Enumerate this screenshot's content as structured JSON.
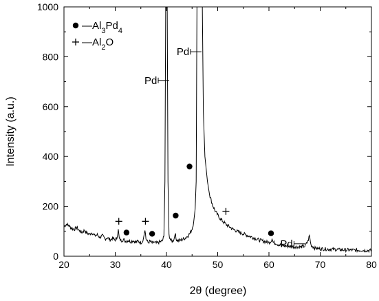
{
  "chart_data": {
    "type": "line",
    "xlabel": "2θ  (degree)",
    "ylabel": "Intensity (a.u.)",
    "xlim": [
      20,
      80
    ],
    "ylim": [
      0,
      1000
    ],
    "x_ticks": [
      20,
      30,
      40,
      50,
      60,
      70,
      80
    ],
    "y_ticks": [
      0,
      200,
      400,
      600,
      800,
      1000
    ],
    "x_tick_labels": [
      "20",
      "30",
      "40",
      "50",
      "60",
      "70",
      "80"
    ],
    "y_tick_labels": [
      "0",
      "200",
      "400",
      "600",
      "800",
      "1000"
    ],
    "grid": false,
    "legend_position": "top-left",
    "legend": [
      {
        "marker": "circle",
        "dash": "—",
        "base": "Al",
        "sub1": "3",
        "mid": "Pd",
        "sub2": "4"
      },
      {
        "marker": "plus",
        "dash": "—",
        "base": "Al",
        "sub1": "2",
        "mid": "O",
        "sub2": ""
      }
    ],
    "series": [
      {
        "points": [
          [
            20.0,
            120
          ],
          [
            20.5,
            128
          ],
          [
            21.0,
            122
          ],
          [
            21.5,
            112
          ],
          [
            22.0,
            108
          ],
          [
            22.5,
            115
          ],
          [
            23.0,
            102
          ],
          [
            23.5,
            96
          ],
          [
            24.0,
            104
          ],
          [
            24.5,
            92
          ],
          [
            25.0,
            88
          ],
          [
            25.5,
            95
          ],
          [
            26.0,
            82
          ],
          [
            26.5,
            86
          ],
          [
            27.0,
            76
          ],
          [
            27.5,
            82
          ],
          [
            28.0,
            70
          ],
          [
            28.5,
            74
          ],
          [
            29.0,
            66
          ],
          [
            29.5,
            72
          ],
          [
            30.0,
            65
          ],
          [
            30.3,
            72
          ],
          [
            30.6,
            105
          ],
          [
            30.8,
            70
          ],
          [
            31.2,
            62
          ],
          [
            31.6,
            68
          ],
          [
            32.0,
            60
          ],
          [
            32.5,
            64
          ],
          [
            33.0,
            58
          ],
          [
            33.5,
            63
          ],
          [
            34.0,
            56
          ],
          [
            34.5,
            60
          ],
          [
            35.0,
            55
          ],
          [
            35.4,
            60
          ],
          [
            35.8,
            110
          ],
          [
            36.0,
            70
          ],
          [
            36.4,
            55
          ],
          [
            36.8,
            60
          ],
          [
            37.2,
            53
          ],
          [
            37.6,
            56
          ],
          [
            38.0,
            52
          ],
          [
            38.4,
            55
          ],
          [
            38.8,
            58
          ],
          [
            39.2,
            62
          ],
          [
            39.5,
            80
          ],
          [
            39.7,
            300
          ],
          [
            39.85,
            1000
          ],
          [
            40.15,
            1000
          ],
          [
            40.3,
            300
          ],
          [
            40.5,
            85
          ],
          [
            40.8,
            65
          ],
          [
            41.2,
            60
          ],
          [
            41.5,
            70
          ],
          [
            41.7,
            95
          ],
          [
            41.85,
            72
          ],
          [
            42.2,
            62
          ],
          [
            42.6,
            64
          ],
          [
            43.0,
            66
          ],
          [
            43.4,
            70
          ],
          [
            43.8,
            75
          ],
          [
            44.2,
            82
          ],
          [
            44.6,
            92
          ],
          [
            45.0,
            110
          ],
          [
            45.3,
            135
          ],
          [
            45.6,
            190
          ],
          [
            45.8,
            300
          ],
          [
            45.95,
            1000
          ],
          [
            47.0,
            1000
          ],
          [
            47.2,
            580
          ],
          [
            47.5,
            400
          ],
          [
            48.0,
            300
          ],
          [
            48.5,
            240
          ],
          [
            49.0,
            205
          ],
          [
            49.5,
            182
          ],
          [
            50.0,
            165
          ],
          [
            50.5,
            150
          ],
          [
            51.0,
            140
          ],
          [
            51.5,
            130
          ],
          [
            52.0,
            122
          ],
          [
            52.5,
            115
          ],
          [
            53.0,
            108
          ],
          [
            53.5,
            103
          ],
          [
            54.0,
            98
          ],
          [
            55.0,
            90
          ],
          [
            56.0,
            82
          ],
          [
            57.0,
            74
          ],
          [
            58.0,
            66
          ],
          [
            59.0,
            60
          ],
          [
            60.0,
            55
          ],
          [
            60.4,
            60
          ],
          [
            60.6,
            72
          ],
          [
            60.8,
            56
          ],
          [
            61.5,
            50
          ],
          [
            62.0,
            46
          ],
          [
            63.0,
            42
          ],
          [
            64.0,
            40
          ],
          [
            65.0,
            38
          ],
          [
            66.0,
            37
          ],
          [
            67.0,
            40
          ],
          [
            67.6,
            60
          ],
          [
            67.9,
            83
          ],
          [
            68.2,
            45
          ],
          [
            69.0,
            32
          ],
          [
            70.0,
            30
          ],
          [
            71.0,
            29
          ],
          [
            72.0,
            28
          ],
          [
            73.0,
            27
          ],
          [
            74.0,
            26
          ],
          [
            75.0,
            25
          ],
          [
            76.0,
            25
          ],
          [
            77.0,
            24
          ],
          [
            78.0,
            24
          ],
          [
            79.0,
            23
          ],
          [
            80.0,
            23
          ]
        ]
      }
    ],
    "annotations": [
      {
        "kind": "text",
        "text": "Pd",
        "x": 40.0,
        "y": 705
      },
      {
        "kind": "text",
        "text": "Pd",
        "x": 46.3,
        "y": 820
      },
      {
        "kind": "text",
        "text": "Pd",
        "x": 66.5,
        "y": 50
      },
      {
        "kind": "plus",
        "x": 30.7,
        "y": 140
      },
      {
        "kind": "plus",
        "x": 35.9,
        "y": 140
      },
      {
        "kind": "plus",
        "x": 51.6,
        "y": 180
      },
      {
        "kind": "circle",
        "x": 32.2,
        "y": 95
      },
      {
        "kind": "circle",
        "x": 37.2,
        "y": 90
      },
      {
        "kind": "circle",
        "x": 41.8,
        "y": 163
      },
      {
        "kind": "circle",
        "x": 44.5,
        "y": 360
      },
      {
        "kind": "circle",
        "x": 60.4,
        "y": 92
      }
    ]
  }
}
